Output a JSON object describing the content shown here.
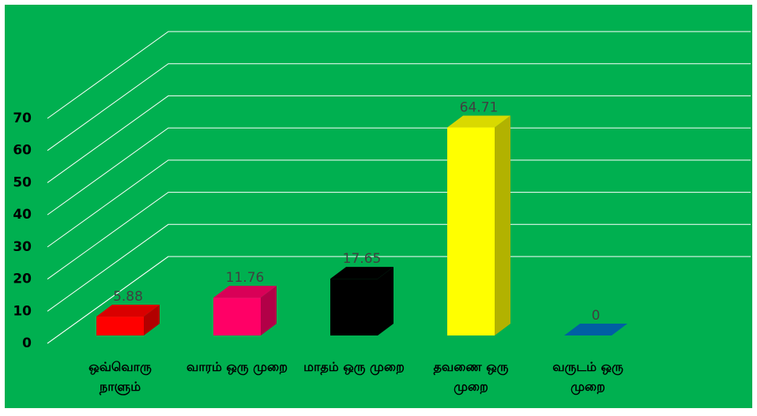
{
  "chart_data": {
    "type": "bar3d",
    "categories": [
      "ஒவ்வொரு நாளும்",
      "வாரம் ஒரு முறை",
      "மாதம் ஒரு முறை",
      "தவணை ஒரு முறை",
      "வருடம் ஒரு முறை"
    ],
    "values": [
      5.88,
      11.76,
      17.65,
      64.71,
      0
    ],
    "colors": [
      "#ff0000",
      "#ff0066",
      "#000000",
      "#ffff00",
      "#0070c0"
    ],
    "ylim": [
      0,
      70
    ],
    "yticks": [
      0,
      10,
      20,
      30,
      40,
      50,
      60,
      70
    ],
    "grid": true
  }
}
